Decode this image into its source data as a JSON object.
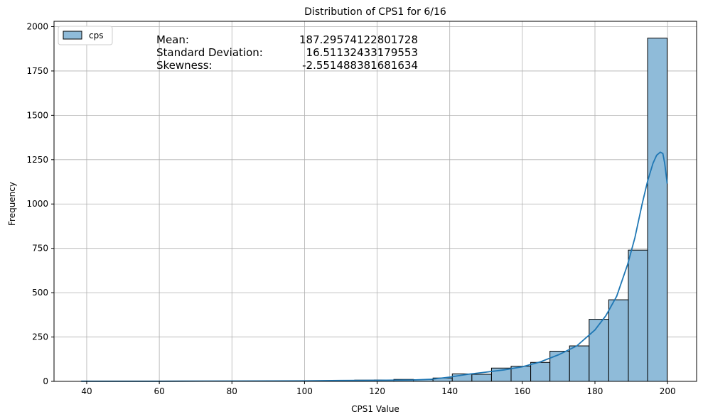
{
  "chart_data": {
    "type": "bar",
    "title": "Distribution of CPS1 for 6/16",
    "xlabel": "CPS1 Value",
    "ylabel": "Frequency",
    "xlim": [
      31,
      208
    ],
    "ylim": [
      0,
      2030
    ],
    "xticks": [
      40,
      60,
      80,
      100,
      120,
      140,
      160,
      180,
      200
    ],
    "yticks": [
      0,
      250,
      500,
      750,
      1000,
      1250,
      1500,
      1750,
      2000
    ],
    "grid": true,
    "legend": {
      "position": "top-left",
      "label": "cps"
    },
    "bar_color": "#8fbbd9",
    "bar_edge": "#000000",
    "kde_color": "#1f77b4",
    "bins": [
      {
        "x0": 38.5,
        "x1": 43.9,
        "value": 1
      },
      {
        "x0": 43.9,
        "x1": 49.3,
        "value": 0
      },
      {
        "x0": 49.3,
        "x1": 54.7,
        "value": 0
      },
      {
        "x0": 54.7,
        "x1": 60.0,
        "value": 1
      },
      {
        "x0": 60.0,
        "x1": 65.4,
        "value": 0
      },
      {
        "x0": 65.4,
        "x1": 70.8,
        "value": 1
      },
      {
        "x0": 70.8,
        "x1": 76.2,
        "value": 2
      },
      {
        "x0": 76.2,
        "x1": 81.6,
        "value": 1
      },
      {
        "x0": 81.6,
        "x1": 86.9,
        "value": 2
      },
      {
        "x0": 86.9,
        "x1": 92.3,
        "value": 2
      },
      {
        "x0": 92.3,
        "x1": 97.7,
        "value": 3
      },
      {
        "x0": 97.7,
        "x1": 103.1,
        "value": 4
      },
      {
        "x0": 103.1,
        "x1": 108.5,
        "value": 3
      },
      {
        "x0": 108.5,
        "x1": 113.8,
        "value": 6
      },
      {
        "x0": 113.8,
        "x1": 119.2,
        "value": 7
      },
      {
        "x0": 119.2,
        "x1": 124.6,
        "value": 8
      },
      {
        "x0": 124.6,
        "x1": 130.0,
        "value": 11
      },
      {
        "x0": 130.0,
        "x1": 135.4,
        "value": 10
      },
      {
        "x0": 135.4,
        "x1": 140.7,
        "value": 19
      },
      {
        "x0": 140.7,
        "x1": 146.1,
        "value": 42
      },
      {
        "x0": 146.1,
        "x1": 151.5,
        "value": 40
      },
      {
        "x0": 151.5,
        "x1": 156.9,
        "value": 75
      },
      {
        "x0": 156.9,
        "x1": 162.3,
        "value": 85
      },
      {
        "x0": 162.3,
        "x1": 167.6,
        "value": 107
      },
      {
        "x0": 167.6,
        "x1": 173.0,
        "value": 170
      },
      {
        "x0": 173.0,
        "x1": 178.4,
        "value": 200
      },
      {
        "x0": 178.4,
        "x1": 183.8,
        "value": 350
      },
      {
        "x0": 183.8,
        "x1": 189.2,
        "value": 460
      },
      {
        "x0": 189.2,
        "x1": 194.5,
        "value": 740
      },
      {
        "x0": 194.5,
        "x1": 199.9,
        "value": 1935
      }
    ],
    "kde": {
      "x": [
        38.5,
        60,
        80,
        100,
        110,
        120,
        130,
        135,
        140,
        145,
        150,
        155,
        160,
        165,
        170,
        175,
        180,
        183,
        186,
        189,
        191,
        193,
        194.5,
        196,
        197,
        198,
        198.7,
        199.2,
        199.9
      ],
      "y": [
        1,
        1,
        2,
        3,
        5,
        6,
        8,
        12,
        24,
        40,
        52,
        65,
        82,
        110,
        150,
        200,
        290,
        370,
        480,
        660,
        810,
        1000,
        1130,
        1230,
        1275,
        1292,
        1285,
        1230,
        1115
      ]
    },
    "annotations": [
      {
        "label": "Mean:",
        "value": "187.29574122801728"
      },
      {
        "label": "Standard Deviation:",
        "value": "16.51132433179553"
      },
      {
        "label": "Skewness:",
        "value": "-2.551488381681634"
      }
    ]
  }
}
